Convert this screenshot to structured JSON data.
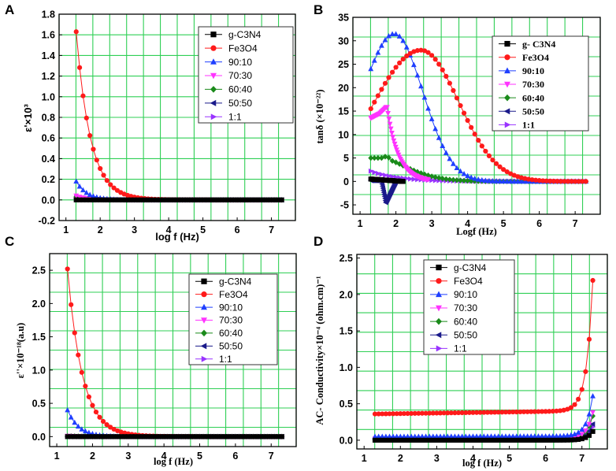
{
  "colors": {
    "grid": "#2fcf55",
    "g-C3N4": "#000000",
    "Fe3O4": "#ff1a1a",
    "90:10": "#1f3fff",
    "70:30": "#ff33ff",
    "60:40": "#1a8a1a",
    "50:50": "#1a1a8a",
    "1:1": "#9933ff"
  },
  "chart_data": [
    {
      "panel_label": "A",
      "type": "scatter",
      "title": "",
      "xlabel": "log f (Hz)",
      "ylabel": "ε'×10³",
      "xlim": [
        0.8,
        7.7
      ],
      "ylim": [
        -0.2,
        1.8
      ],
      "xticks": [
        "1",
        "2",
        "3",
        "4",
        "5",
        "6",
        "7"
      ],
      "yticks": [
        "-0.2",
        "0.0",
        "0.2",
        "0.4",
        "0.6",
        "0.8",
        "1.0",
        "1.2",
        "1.4",
        "1.6",
        "1.8"
      ],
      "legend_position": "top-right",
      "series": [
        {
          "name": "g-C3N4",
          "marker": "square",
          "x_range": [
            1.3,
            7.3
          ],
          "values": [
            0.0,
            0.0
          ]
        },
        {
          "name": "Fe3O4",
          "marker": "circle",
          "x_range": [
            1.3,
            7.3
          ],
          "values": [
            1.63,
            0.0
          ]
        },
        {
          "name": "90:10",
          "marker": "triangle-up",
          "x_range": [
            1.3,
            7.3
          ],
          "values": [
            0.18,
            0.0
          ]
        },
        {
          "name": "70:30",
          "marker": "triangle-down",
          "x_range": [
            1.3,
            7.3
          ],
          "values": [
            0.04,
            0.0
          ]
        },
        {
          "name": "60:40",
          "marker": "diamond",
          "x_range": [
            1.3,
            7.3
          ],
          "values": [
            0.03,
            0.0
          ]
        },
        {
          "name": "50:50",
          "marker": "triangle-left",
          "x_range": [
            1.3,
            7.3
          ],
          "values": [
            0.02,
            0.0
          ]
        },
        {
          "name": "1:1",
          "marker": "triangle-right",
          "x_range": [
            1.3,
            7.3
          ],
          "values": [
            0.02,
            0.0
          ]
        }
      ]
    },
    {
      "panel_label": "B",
      "type": "scatter",
      "title": "",
      "xlabel": "Logf (Hz)",
      "ylabel": "tanδ (×10⁻²²)",
      "xlim": [
        0.8,
        7.7
      ],
      "ylim": [
        -7,
        35
      ],
      "xticks": [
        "1",
        "2",
        "3",
        "4",
        "5",
        "6",
        "7"
      ],
      "yticks": [
        "-5",
        "0",
        "5",
        "10",
        "15",
        "20",
        "25",
        "30",
        "35"
      ],
      "legend_position": "top-right",
      "series": [
        {
          "name": "g- C3N4",
          "marker": "square",
          "x_range": [
            1.3,
            2.2
          ],
          "values": [
            0.5,
            0.0
          ]
        },
        {
          "name": "Fe3O4",
          "marker": "circle",
          "x_range": [
            1.3,
            7.3
          ],
          "peak_x": 2.7,
          "peak_value": 28.0,
          "start_value": 15.5
        },
        {
          "name": "90:10",
          "marker": "triangle-up",
          "x_range": [
            1.3,
            7.3
          ],
          "peak_x": 1.95,
          "peak_value": 31.5,
          "start_value": 24.0
        },
        {
          "name": "70:30",
          "marker": "triangle-down",
          "x_range": [
            1.3,
            2.9
          ],
          "values": [
            13.5,
            16.0,
            3.0
          ]
        },
        {
          "name": "60:40",
          "marker": "diamond",
          "x_range": [
            1.3,
            7.3
          ],
          "values": [
            5.0,
            4.8,
            0.0
          ]
        },
        {
          "name": "50:50",
          "marker": "triangle-left",
          "x_range": [
            1.3,
            2.0
          ],
          "values": [
            0.3,
            -4.5,
            0.0
          ]
        },
        {
          "name": "1:1",
          "marker": "triangle-right",
          "x_range": [
            1.3,
            7.3
          ],
          "values": [
            2.2,
            0.0
          ]
        }
      ]
    },
    {
      "panel_label": "C",
      "type": "scatter",
      "title": "",
      "xlabel": "log f (Hz)",
      "ylabel": "ε''×10⁻¹⁸(a.u)",
      "xlim": [
        0.8,
        7.7
      ],
      "ylim": [
        -0.15,
        2.75
      ],
      "xticks": [
        "1",
        "2",
        "3",
        "4",
        "5",
        "6",
        "7"
      ],
      "yticks": [
        "0.0",
        "0.5",
        "1.0",
        "1.5",
        "2.0",
        "2.5"
      ],
      "legend_position": "top-center",
      "series": [
        {
          "name": "g-C3N4",
          "marker": "square",
          "x_range": [
            1.3,
            7.3
          ],
          "values": [
            0.0,
            0.0
          ]
        },
        {
          "name": "Fe3O4",
          "marker": "circle",
          "x_range": [
            1.3,
            7.3
          ],
          "values": [
            2.52,
            0.0
          ]
        },
        {
          "name": "90:10",
          "marker": "triangle-up",
          "x_range": [
            1.3,
            7.3
          ],
          "values": [
            0.4,
            0.0
          ]
        },
        {
          "name": "70:30",
          "marker": "triangle-down",
          "x_range": [
            1.3,
            7.3
          ],
          "values": [
            0.01,
            0.0
          ]
        },
        {
          "name": "60:40",
          "marker": "diamond",
          "x_range": [
            1.3,
            7.3
          ],
          "values": [
            0.01,
            0.0
          ]
        },
        {
          "name": "50:50",
          "marker": "triangle-left",
          "x_range": [
            1.3,
            7.3
          ],
          "values": [
            0.0,
            0.0
          ]
        },
        {
          "name": "1:1",
          "marker": "triangle-right",
          "x_range": [
            1.3,
            7.3
          ],
          "values": [
            0.0,
            0.0
          ]
        }
      ]
    },
    {
      "panel_label": "D",
      "type": "scatter",
      "title": "",
      "xlabel": "log f (Hz)",
      "ylabel": "AC- Conductivity×10⁻⁴ (ohm.cm)⁻¹",
      "xlim": [
        0.8,
        7.7
      ],
      "ylim": [
        -0.12,
        2.55
      ],
      "xticks": [
        "1",
        "2",
        "3",
        "4",
        "5",
        "6",
        "7"
      ],
      "yticks": [
        "0.0",
        "0.5",
        "1.0",
        "1.5",
        "2.0",
        "2.5"
      ],
      "legend_position": "top-left",
      "series": [
        {
          "name": "g-C3N4",
          "marker": "square",
          "x_range": [
            1.3,
            7.3
          ],
          "base": 0.0,
          "end": 0.12
        },
        {
          "name": "Fe3O4",
          "marker": "circle",
          "x_range": [
            1.3,
            7.3
          ],
          "base": 0.36,
          "end": 2.15
        },
        {
          "name": "90:10",
          "marker": "triangle-up",
          "x_range": [
            1.3,
            7.3
          ],
          "base": 0.05,
          "end": 0.6
        },
        {
          "name": "70:30",
          "marker": "triangle-down",
          "x_range": [
            1.3,
            7.3
          ],
          "base": 0.02,
          "end": 0.38
        },
        {
          "name": "60:40",
          "marker": "diamond",
          "x_range": [
            1.3,
            7.3
          ],
          "base": 0.02,
          "end": 0.33
        },
        {
          "name": "50:50",
          "marker": "triangle-left",
          "x_range": [
            1.3,
            7.3
          ],
          "base": 0.01,
          "end": 0.22
        },
        {
          "name": "1:1",
          "marker": "triangle-right",
          "x_range": [
            1.3,
            7.3
          ],
          "base": 0.01,
          "end": 0.18
        }
      ]
    }
  ]
}
